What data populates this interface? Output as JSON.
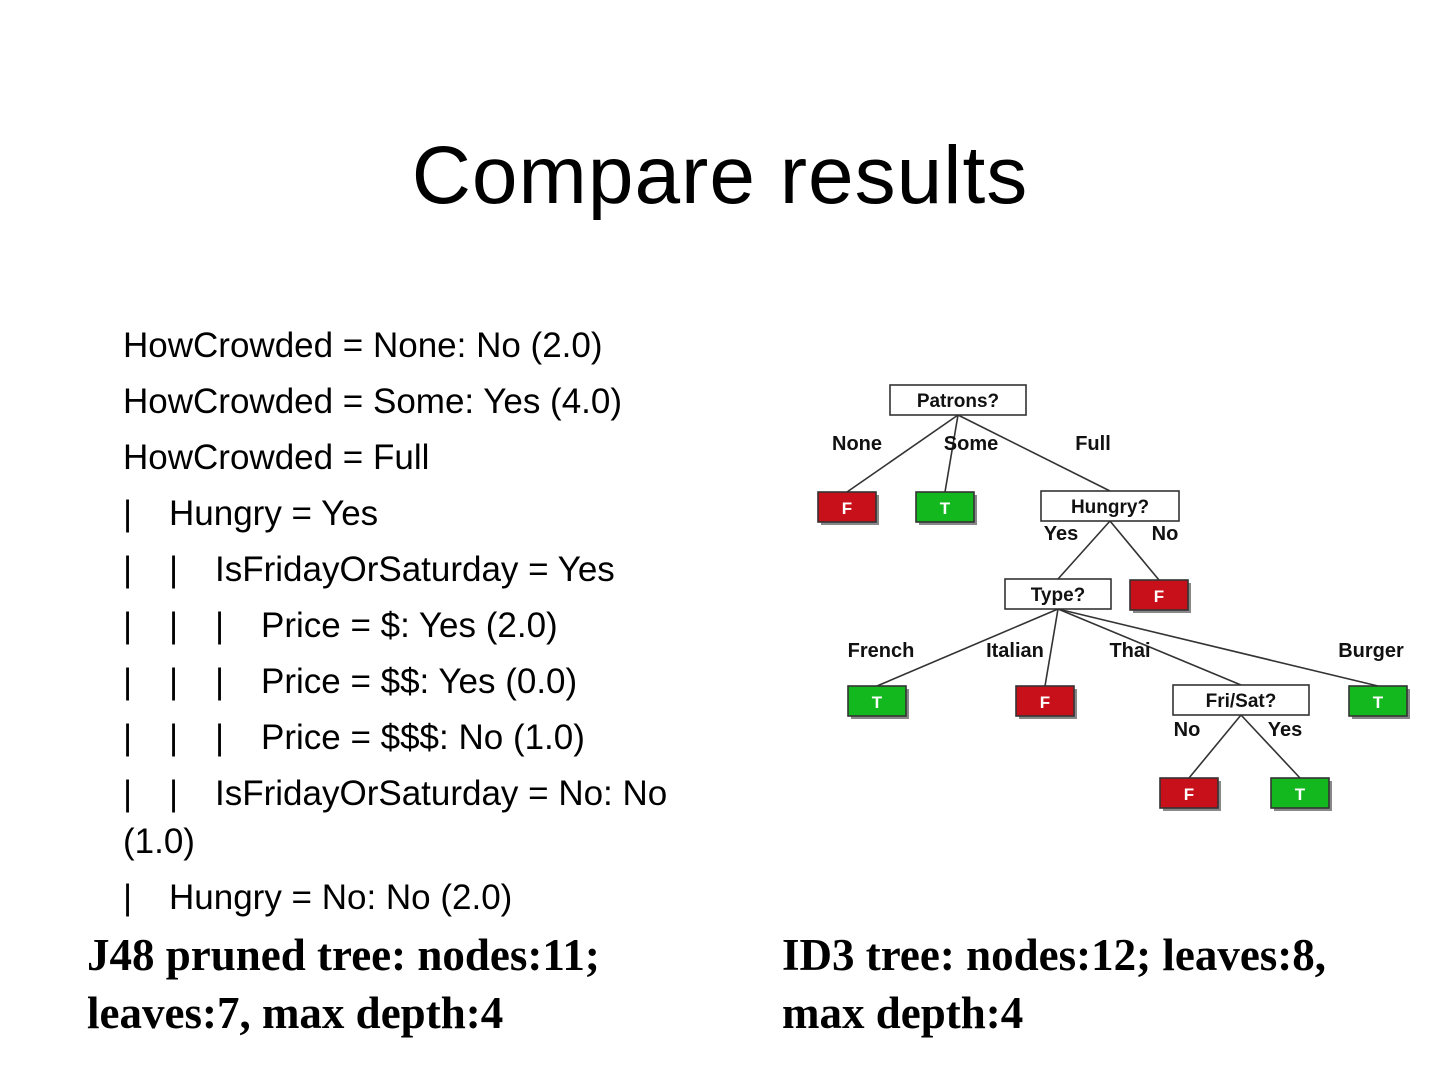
{
  "slide": {
    "title": "Compare results"
  },
  "j48_rules": {
    "lines": [
      {
        "depth": 0,
        "text": "HowCrowded = None: No (2.0)"
      },
      {
        "depth": 0,
        "text": "HowCrowded = Some: Yes (4.0)"
      },
      {
        "depth": 0,
        "text": "HowCrowded = Full"
      },
      {
        "depth": 1,
        "text": "Hungry = Yes"
      },
      {
        "depth": 2,
        "text": "IsFridayOrSaturday = Yes"
      },
      {
        "depth": 3,
        "text": "Price = $: Yes (2.0)"
      },
      {
        "depth": 3,
        "text": "Price = $$: Yes (0.0)"
      },
      {
        "depth": 3,
        "text": "Price = $$$: No (1.0)"
      },
      {
        "depth": 2,
        "text": "IsFridayOrSaturday = No: No (1.0)"
      },
      {
        "depth": 1,
        "text": "Hungry = No: No (2.0)"
      }
    ]
  },
  "summaries": {
    "j48": "J48 pruned tree: nodes:11; leaves:7, max depth:4",
    "id3": "ID3 tree: nodes:12; leaves:8, max depth:4"
  },
  "id3_tree": {
    "nodes": [
      {
        "id": "patrons",
        "label": "Patrons?",
        "kind": "test"
      },
      {
        "id": "p_none",
        "label": "F",
        "kind": "false"
      },
      {
        "id": "p_some",
        "label": "T",
        "kind": "true"
      },
      {
        "id": "hungry",
        "label": "Hungry?",
        "kind": "test"
      },
      {
        "id": "h_no",
        "label": "F",
        "kind": "false"
      },
      {
        "id": "type",
        "label": "Type?",
        "kind": "test"
      },
      {
        "id": "t_french",
        "label": "T",
        "kind": "true"
      },
      {
        "id": "t_italian",
        "label": "F",
        "kind": "false"
      },
      {
        "id": "frisat",
        "label": "Fri/Sat?",
        "kind": "test"
      },
      {
        "id": "t_burger",
        "label": "T",
        "kind": "true"
      },
      {
        "id": "fs_no",
        "label": "F",
        "kind": "false"
      },
      {
        "id": "fs_yes",
        "label": "T",
        "kind": "true"
      }
    ],
    "edges": [
      {
        "from": "patrons",
        "to": "p_none",
        "label": "None"
      },
      {
        "from": "patrons",
        "to": "p_some",
        "label": "Some"
      },
      {
        "from": "patrons",
        "to": "hungry",
        "label": "Full"
      },
      {
        "from": "hungry",
        "to": "type",
        "label": "Yes"
      },
      {
        "from": "hungry",
        "to": "h_no",
        "label": "No"
      },
      {
        "from": "type",
        "to": "t_french",
        "label": "French"
      },
      {
        "from": "type",
        "to": "t_italian",
        "label": "Italian"
      },
      {
        "from": "type",
        "to": "frisat",
        "label": "Thai"
      },
      {
        "from": "type",
        "to": "t_burger",
        "label": "Burger"
      },
      {
        "from": "frisat",
        "to": "fs_no",
        "label": "No"
      },
      {
        "from": "frisat",
        "to": "fs_yes",
        "label": "Yes"
      }
    ],
    "colors": {
      "true_fill": "#12b81e",
      "false_fill": "#c8101a",
      "test_fill": "#ffffff",
      "stroke": "#333333"
    }
  }
}
